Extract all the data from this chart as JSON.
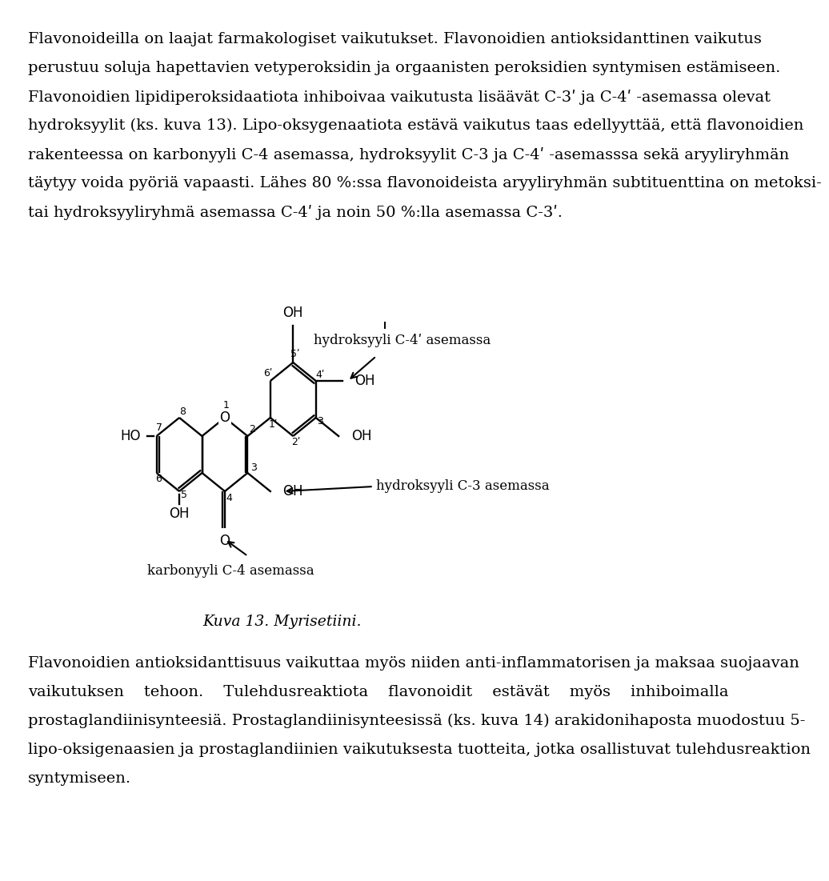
{
  "page_text_top": [
    [
      "Flavonoideilla on laajat farmakologiset vaikutukset.",
      "Flavonoidien antioksidanttinen vaikutus"
    ],
    [
      "perustuu soluja hapettavien vetyperoksidin ja orgaanisten peroksidien syntymisen estämiseen."
    ],
    [
      "Flavonoidien lipidiperoksidaatiota inhiboivaa vaikutusta lisäävät C-3ʹ ja C-4ʹ -asemassa olevat"
    ],
    [
      "hydroksyylit (ks. kuva 13). Lipo-oksygenaatiota estävä vaikutus taas edellyyttää, että flavonoidien"
    ],
    [
      "rakenteessa on karbonyyli C-4 asemassa, hydroksyylit C-3 ja C-4ʹ -asemasssa sekä aryyliryhmän"
    ],
    [
      "täytyy voida pyöriä vapaasti. Lähes 80 %:ssa flavonoideista aryyliryhmän subtituenttina on metoksi-"
    ],
    [
      "tai hydroksyyliryhmä asemassa C-4ʹ ja noin 50 %:lla asemassa C-3ʹ."
    ]
  ],
  "page_text_bottom": [
    "Flavonoidien antioksidanttisuus vaikuttaa myös niiden anti-inflammatorisen ja maksaa suojaavan",
    "vaikutuksen    tehoon.    Tulehdusreaktiota    flavonoidit    estävät    myös    inhiboimalla",
    "prostaglandiinisynteesiä. Prostaglandiinisynteesissä (ks. kuva 14) arakidonihaposta muodostuu 5-",
    "lipo-oksigenaasien ja prostaglandiinien vaikutuksesta tuotteita, jotka osallistuvat tulehdusreaktion",
    "syntymiseen."
  ],
  "caption": "Kuva 13. Myrisetiini.",
  "annotation_top": "hydroksyyli C-4ʹ asemassa",
  "annotation_mid": "hydroksyyli C-3 asemassa",
  "annotation_bot": "karbonyyli C-4 asemassa",
  "background_color": "#ffffff",
  "text_color": "#000000",
  "font_size": 14.0,
  "caption_font_size": 13.5
}
